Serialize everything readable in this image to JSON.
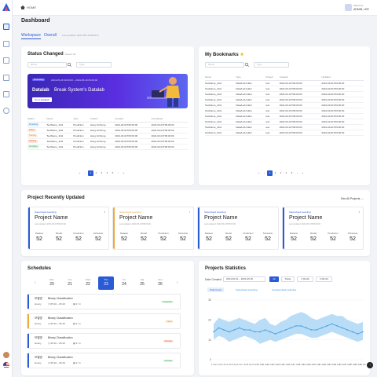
{
  "topbar": {
    "home_label": "HOME",
    "user_line1": "Welcome",
    "user_line2": "ADMIN, LEE"
  },
  "page": {
    "title": "Dashboard"
  },
  "tabs": [
    {
      "label": "Workspace"
    },
    {
      "label": "Overall"
    }
  ],
  "tab_meta": "Last updated: 2024-05-13T08:00 ↻",
  "status_changed": {
    "title": "Status Changed",
    "subtitle": "Recent 30",
    "search_placeholder": "Name",
    "type_placeholder": "Type",
    "banner": {
      "tag": "Processing",
      "dates": "2024-05-18 09:00:00 ~ 2024-05-19 09:00:00",
      "title": "Datalab",
      "subtitle": "Break System's Datalab",
      "button": "Go to Datalab"
    },
    "columns": [
      "Status",
      "Name",
      "Type",
      "Creator",
      "Created",
      "Completed"
    ],
    "rows": [
      {
        "status": "Predicting",
        "status_color": "#2a8be0",
        "status_bg": "#e3f1fd",
        "name": "TestName_1111",
        "type": "Prediction",
        "creator": "Hong Gil Dong",
        "created": "2024-03-01T09:00:00",
        "completed": "2024-03-01T09:00:00"
      },
      {
        "status": "Failed",
        "status_color": "#e0602a",
        "status_bg": "#fde9e0",
        "name": "TestName_1111",
        "type": "Prediction",
        "creator": "Hong Gil Dong",
        "created": "2024-03-01T09:00:00",
        "completed": "2024-03-01T09:00:00"
      },
      {
        "status": "Training",
        "status_color": "#e08a2a",
        "status_bg": "#fdf0e0",
        "name": "TestName_1111",
        "type": "Prediction",
        "creator": "Hong Gil Dong",
        "created": "2024-03-01T09:00:00",
        "completed": "2024-03-01T09:00:00"
      },
      {
        "status": "Training",
        "status_color": "#e0602a",
        "status_bg": "#fde4de",
        "name": "TestName_1111",
        "type": "Prediction",
        "creator": "Hong Gil Dong",
        "created": "2024-03-01T09:00:00",
        "completed": "2024-03-01T09:00:00"
      },
      {
        "status": "Complete",
        "status_color": "#2aa84a",
        "status_bg": "#e3f6e7",
        "name": "TestName_1111",
        "type": "Prediction",
        "creator": "Hong Gil Dong",
        "created": "2024-03-01T09:00:00",
        "completed": "2024-03-01T09:00:00"
      }
    ],
    "pager": [
      "«",
      "‹",
      "1",
      "2",
      "3",
      "4",
      "5",
      "›",
      "»"
    ]
  },
  "bookmarks": {
    "title": "My Bookmarks",
    "search_placeholder": "Name",
    "type_placeholder": "Type",
    "columns": [
      "Name",
      "Type",
      "Project",
      "Created",
      "Updated"
    ],
    "rows": [
      {
        "name": "TestName_1111",
        "type": "Data/Lab folder",
        "project": "test",
        "created": "2024-03-01T09:00:00",
        "updated": "2024-03-01T09:00:00"
      },
      {
        "name": "TestName_1111",
        "type": "Data/Lab folder",
        "project": "test",
        "created": "2024-03-01T09:00:00",
        "updated": "2024-03-01T09:00:00"
      },
      {
        "name": "TestName_1111",
        "type": "Data/Lab folder",
        "project": "test",
        "created": "2024-03-01T09:00:00",
        "updated": "2024-03-01T09:00:00"
      },
      {
        "name": "TestName_1111",
        "type": "Data/Lab folder",
        "project": "test",
        "created": "2024-03-01T09:00:00",
        "updated": "2024-03-01T09:00:00"
      },
      {
        "name": "TestName_1111",
        "type": "Data/Lab folder",
        "project": "test",
        "created": "2024-03-01T09:00:00",
        "updated": "2024-03-01T09:00:00"
      },
      {
        "name": "TestName_1111",
        "type": "Data/Lab folder",
        "project": "test",
        "created": "2024-03-01T09:00:00",
        "updated": "2024-03-01T09:00:00"
      },
      {
        "name": "TestName_1111",
        "type": "Data/Lab folder",
        "project": "test",
        "created": "2024-03-01T09:00:00",
        "updated": "2024-03-01T09:00:00"
      },
      {
        "name": "TestName_1111",
        "type": "Data/Lab folder",
        "project": "test",
        "created": "2024-03-01T09:00:00",
        "updated": "2024-03-01T09:00:00"
      },
      {
        "name": "TestName_1111",
        "type": "Data/Lab folder",
        "project": "test",
        "created": "2024-03-01T09:00:00",
        "updated": "2024-03-01T09:00:00"
      },
      {
        "name": "TestName_1111",
        "type": "Data/Lab folder",
        "project": "test",
        "created": "2024-03-01T09:00:00",
        "updated": "2024-03-01T09:00:00"
      }
    ],
    "pager": [
      "«",
      "‹",
      "1",
      "2",
      "3",
      "4",
      "5",
      "›",
      "»"
    ]
  },
  "projects": {
    "title": "Project Recently Updated",
    "see_all": "See All Projects →",
    "cards": [
      {
        "type": "Supervised Learning",
        "type_color": "#2a5bd7",
        "bar_color": "#2a5bd7",
        "count": "3",
        "name": "Project Name",
        "date": "Last updated: 2024-05-13T08:00:00",
        "stats": [
          {
            "label": "Dataset",
            "value": "52"
          },
          {
            "label": "Model",
            "value": "52"
          },
          {
            "label": "Prediction",
            "value": "52"
          },
          {
            "label": "Schedule",
            "value": "52"
          }
        ]
      },
      {
        "type": "Supervised Learning",
        "type_color": "#e8a23a",
        "bar_color": "#f0a93a",
        "count": "7",
        "name": "Project Name",
        "date": "Last updated: 2024-05-13T08:00:00",
        "stats": [
          {
            "label": "Dataset",
            "value": "52"
          },
          {
            "label": "Model",
            "value": "52"
          },
          {
            "label": "Prediction",
            "value": "52"
          },
          {
            "label": "Schedule",
            "value": "52"
          }
        ]
      },
      {
        "type": "Supervised Learning",
        "type_color": "#2a5bd7",
        "bar_color": "#2a5bd7",
        "count": "",
        "name": "Project Name",
        "date": "Last updated: 2024-05-13T08:00:00",
        "stats": [
          {
            "label": "Dataset",
            "value": "52"
          },
          {
            "label": "Model",
            "value": "52"
          },
          {
            "label": "Prediction",
            "value": "52"
          },
          {
            "label": "Schedule",
            "value": "52"
          }
        ]
      },
      {
        "type": "Supervised Learning",
        "type_color": "#2a5bd7",
        "bar_color": "#2a5bd7",
        "count": "3",
        "name": "Project Name",
        "date": "Last updated: 2024-05-13T08:00:00",
        "stats": [
          {
            "label": "Dataset",
            "value": "52"
          },
          {
            "label": "Model",
            "value": "52"
          },
          {
            "label": "Prediction",
            "value": "52"
          },
          {
            "label": "Schedule",
            "value": "52"
          }
        ]
      }
    ]
  },
  "schedules": {
    "title": "Schedules",
    "days": [
      {
        "dow": "Mon",
        "num": "20"
      },
      {
        "dow": "Tue",
        "num": "21"
      },
      {
        "dow": "Wed",
        "num": "22"
      },
      {
        "dow": "Thu",
        "num": "23"
      },
      {
        "dow": "Fri",
        "num": "24"
      },
      {
        "dow": "Sat",
        "num": "25"
      },
      {
        "dow": "Sun",
        "num": "26"
      }
    ],
    "items": [
      {
        "name": "모델명",
        "type": "Binary Classification",
        "user": "Hoony",
        "time": "◷ 05:10 ~ 06:10",
        "progress": "▤ 2 / 4",
        "badge": "Scheduled",
        "badge_color": "#2aa84a",
        "badge_bg": "#e3f6e7",
        "bar_color": "#2a5bd7"
      },
      {
        "name": "모델명",
        "type": "Binary Classification",
        "user": "Hoony",
        "time": "◷ 05:10 ~ 06:10",
        "progress": "▤ 2 / 4",
        "badge": "Failed",
        "badge_color": "#e08a2a",
        "badge_bg": "#fdf0e0",
        "bar_color": "#f0a93a"
      },
      {
        "name": "모델명",
        "type": "Binary Classification",
        "user": "Hoony",
        "time": "◷ 05:10 ~ 06:10",
        "progress": "▤ 2 / 4",
        "badge": "Running",
        "badge_color": "#e0602a",
        "badge_bg": "#fde4de",
        "bar_color": "#2a5bd7"
      },
      {
        "name": "모델명",
        "type": "Binary Classification",
        "user": "Hoony",
        "time": "◷ 05:10 ~ 06:10",
        "progress": "▤ 2 / 4",
        "badge": "Finished",
        "badge_color": "#2aa84a",
        "badge_bg": "#e3f6e7",
        "bar_color": "#2a5bd7"
      }
    ]
  },
  "stats": {
    "title": "Projects Statistics",
    "date_label": "Date Created",
    "date_range": "2024-06-01 ~ 2024-06-30",
    "buttons": [
      "All",
      "Today",
      "1 Month",
      "6 Month"
    ],
    "tabs": [
      "Total Count",
      "Supervised Learning",
      "Unsupervised Learning"
    ]
  },
  "chart_data": {
    "type": "area",
    "x": [
      "1 Jun",
      "2 Jun",
      "3 Jun",
      "4 Jun",
      "5 Jun",
      "6 Jun",
      "7 Jun",
      "8 Jun",
      "9 Jun",
      "10 Jun",
      "11 Jun",
      "12 Jun",
      "13 Jun",
      "14 Jun",
      "15 Jun",
      "16 Jun",
      "17 Jun",
      "18 Jun",
      "19 Jun",
      "20 Jun",
      "21 Jun",
      "22 Jun",
      "23 Jun",
      "24 Jun",
      "25 Jun",
      "26 Jun",
      "27 Jun",
      "28 Jun",
      "29 Jun",
      "30 Jun"
    ],
    "yticks": [
      0,
      10,
      20,
      30
    ],
    "ylim": [
      0,
      30
    ],
    "series": [
      {
        "values": [
          14,
          16,
          15,
          14,
          15,
          16,
          15,
          15,
          14,
          14,
          15,
          14,
          13,
          14,
          15,
          16,
          17,
          17,
          16,
          15,
          15,
          16,
          17,
          18,
          17,
          16,
          15,
          14,
          13,
          14
        ],
        "color": "#3b9be0"
      }
    ],
    "band_low": [
      10,
      12,
      11,
      9,
      10,
      11,
      12,
      11,
      10,
      8,
      9,
      10,
      9,
      10,
      11,
      12,
      13,
      13,
      12,
      11,
      11,
      12,
      13,
      14,
      13,
      12,
      11,
      10,
      9,
      10
    ],
    "band_high": [
      18,
      21,
      20,
      19,
      20,
      21,
      20,
      19,
      18,
      20,
      21,
      18,
      17,
      19,
      20,
      22,
      23,
      24,
      23,
      21,
      20,
      21,
      22,
      23,
      22,
      22,
      20,
      19,
      18,
      19
    ],
    "band_color": "#a7d4f5"
  }
}
